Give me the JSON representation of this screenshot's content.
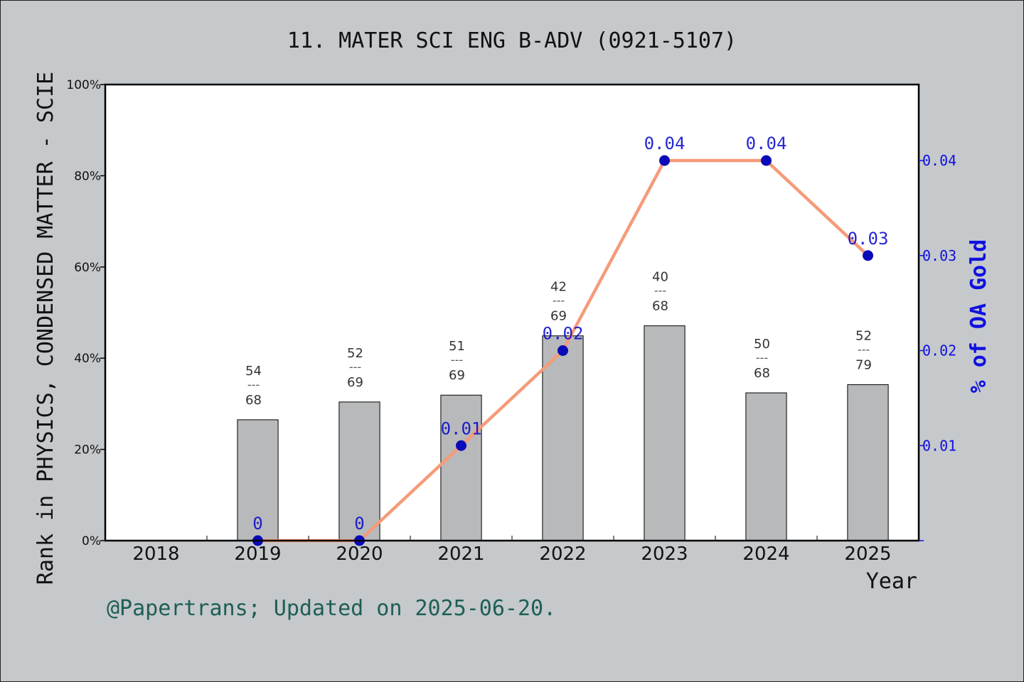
{
  "chart_data": {
    "type": "bar",
    "title": "11. MATER SCI ENG B-ADV (0921-5107)",
    "xlabel": "Year",
    "ylabel": "Rank in PHYSICS, CONDENSED MATTER - SCIE",
    "y2label": "% of OA Gold",
    "footer": "@Papertrans; Updated on 2025-06-20.",
    "categories": [
      "2018",
      "2019",
      "2020",
      "2021",
      "2022",
      "2023",
      "2024",
      "2025"
    ],
    "y_ticks": [
      "0%",
      "20%",
      "40%",
      "60%",
      "80%",
      "100%"
    ],
    "y_tick_values": [
      0,
      20,
      40,
      60,
      80,
      100
    ],
    "y2_ticks": [
      "0.01",
      "0.02",
      "0.03",
      "0.04"
    ],
    "y2_tick_values": [
      0.01,
      0.02,
      0.03,
      0.04
    ],
    "ylim": [
      0,
      100
    ],
    "y2lim": [
      0,
      0.048
    ],
    "bars": [
      {
        "x": "2019",
        "value": 26.5,
        "rank": "54",
        "total": "68"
      },
      {
        "x": "2020",
        "value": 30.4,
        "rank": "52",
        "total": "69"
      },
      {
        "x": "2021",
        "value": 31.9,
        "rank": "51",
        "total": "69"
      },
      {
        "x": "2022",
        "value": 44.9,
        "rank": "42",
        "total": "69"
      },
      {
        "x": "2023",
        "value": 47.1,
        "rank": "40",
        "total": "68"
      },
      {
        "x": "2024",
        "value": 32.4,
        "rank": "50",
        "total": "68"
      },
      {
        "x": "2025",
        "value": 34.2,
        "rank": "52",
        "total": "79"
      }
    ],
    "bar_separator": "---",
    "line": [
      {
        "x": "2019",
        "value": 0,
        "label": "0"
      },
      {
        "x": "2020",
        "value": 0,
        "label": "0"
      },
      {
        "x": "2021",
        "value": 0.01,
        "label": "0.01"
      },
      {
        "x": "2022",
        "value": 0.02,
        "label": "0.02"
      },
      {
        "x": "2023",
        "value": 0.04,
        "label": "0.04"
      },
      {
        "x": "2024",
        "value": 0.04,
        "label": "0.04"
      },
      {
        "x": "2025",
        "value": 0.03,
        "label": "0.03"
      }
    ],
    "colors": {
      "background": "#c5c9cc",
      "plot": "#ffffff",
      "bar": "#b8b9ba",
      "line": "#f59b79",
      "marker": "#0a0ab8",
      "right_axis": "#1010e0",
      "footer": "#1e5e56"
    }
  }
}
